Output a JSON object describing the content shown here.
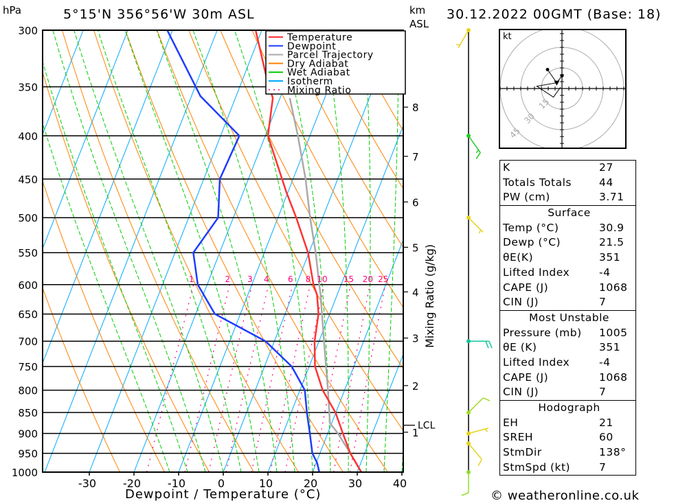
{
  "header": {
    "pressure_unit": "hPa",
    "location": "5°15'N 356°56'W 30m ASL",
    "km_label": "km",
    "asl_label": "ASL",
    "datetime": "30.12.2022 00GMT (Base: 18)"
  },
  "footer": {
    "copyright": "© weatheronline.co.uk"
  },
  "legend": [
    {
      "label": "Temperature",
      "color": "#ff3333",
      "style": "solid"
    },
    {
      "label": "Dewpoint",
      "color": "#1f3cff",
      "style": "solid"
    },
    {
      "label": "Parcel Trajectory",
      "color": "#aaaaaa",
      "style": "solid"
    },
    {
      "label": "Dry Adiabat",
      "color": "#ff8000",
      "style": "solid"
    },
    {
      "label": "Wet Adiabat",
      "color": "#00cc00",
      "style": "solid"
    },
    {
      "label": "Isotherm",
      "color": "#00aaff",
      "style": "solid"
    },
    {
      "label": "Mixing Ratio",
      "color": "#ff0080",
      "style": "dotted"
    }
  ],
  "chart_data": {
    "type": "line",
    "subtype": "skew-T log-p",
    "xlabel": "Dewpoint / Temperature (°C)",
    "ylabel": "hPa",
    "right_label": "Mixing Ratio (g/kg)",
    "x_ticks": [
      "-30",
      "-20",
      "-10",
      "0",
      "10",
      "20",
      "30",
      "40"
    ],
    "x_tick_values": [
      -30,
      -20,
      -10,
      0,
      10,
      20,
      30,
      40
    ],
    "pressure_levels": [
      "300",
      "350",
      "400",
      "450",
      "500",
      "550",
      "600",
      "650",
      "700",
      "750",
      "800",
      "850",
      "900",
      "950",
      "1000"
    ],
    "ylim_hpa": [
      1000,
      300
    ],
    "height_km": [
      {
        "label": "8",
        "p": 370
      },
      {
        "label": "7",
        "p": 423
      },
      {
        "label": "6",
        "p": 479
      },
      {
        "label": "5",
        "p": 542
      },
      {
        "label": "4",
        "p": 612
      },
      {
        "label": "3",
        "p": 694
      },
      {
        "label": "2",
        "p": 790
      },
      {
        "label": "1",
        "p": 897
      }
    ],
    "lcl": {
      "label": "LCL",
      "p": 880
    },
    "mixing_ratios": [
      "1",
      "2",
      "3",
      "4",
      "6",
      "8",
      "10",
      "15",
      "20",
      "25"
    ],
    "series": [
      {
        "name": "Temperature",
        "color": "#ff3333",
        "points": [
          [
            1000,
            30.9
          ],
          [
            975,
            28.9
          ],
          [
            950,
            26.8
          ],
          [
            900,
            23.4
          ],
          [
            850,
            19.9
          ],
          [
            800,
            15.1
          ],
          [
            750,
            11.3
          ],
          [
            700,
            9.0
          ],
          [
            650,
            7.5
          ],
          [
            617,
            5.5
          ],
          [
            600,
            3.8
          ],
          [
            550,
            -0.2
          ],
          [
            500,
            -5.9
          ],
          [
            466,
            -10.4
          ],
          [
            400,
            -19.4
          ],
          [
            361,
            -21.6
          ],
          [
            340,
            -25
          ],
          [
            300,
            -31.4
          ]
        ]
      },
      {
        "name": "Dewpoint",
        "color": "#1f3cff",
        "points": [
          [
            1000,
            21.5
          ],
          [
            975,
            20.2
          ],
          [
            950,
            18.3
          ],
          [
            900,
            16.0
          ],
          [
            850,
            13.5
          ],
          [
            800,
            11.1
          ],
          [
            750,
            6.1
          ],
          [
            700,
            -2.0
          ],
          [
            650,
            -15.7
          ],
          [
            600,
            -22.1
          ],
          [
            550,
            -25.9
          ],
          [
            500,
            -23.4
          ],
          [
            450,
            -26.4
          ],
          [
            400,
            -25.8
          ],
          [
            359,
            -38.0
          ],
          [
            300,
            -51.2
          ]
        ]
      },
      {
        "name": "Parcel Trajectory",
        "color": "#aaaaaa",
        "points": [
          [
            1000,
            30.9
          ],
          [
            950,
            26.8
          ],
          [
            900,
            22.3
          ],
          [
            875,
            19.6
          ],
          [
            792,
            15.9
          ],
          [
            700,
            11.1
          ],
          [
            617,
            6.3
          ],
          [
            600,
            5.1
          ],
          [
            550,
            1.5
          ],
          [
            500,
            -2.8
          ],
          [
            450,
            -7.2
          ],
          [
            400,
            -12.7
          ],
          [
            361,
            -17.8
          ]
        ]
      }
    ],
    "background": {
      "isotherms_C": [
        -120,
        -110,
        -100,
        -90,
        -80,
        -70,
        -60,
        -50,
        -40,
        -30,
        -20,
        -10,
        0,
        10,
        20,
        30,
        40
      ],
      "dry_adiabats_K": [
        250,
        260,
        270,
        280,
        290,
        300,
        310,
        320,
        330,
        340,
        350,
        360,
        370,
        380,
        390,
        400,
        410,
        420,
        430,
        440,
        450
      ],
      "wet_adiabats_C_at_1000": [
        -12,
        -8,
        -4,
        0,
        4,
        8,
        12,
        16,
        20,
        24,
        28,
        32,
        36,
        40
      ]
    },
    "winds": [
      {
        "p": 300,
        "dir": 210,
        "spd": 5,
        "color": "#e6d21e"
      },
      {
        "p": 400,
        "dir": 145,
        "spd": 15,
        "color": "#22cc22"
      },
      {
        "p": 500,
        "dir": 135,
        "spd": 5,
        "color": "#e6d21e"
      },
      {
        "p": 700,
        "dir": 90,
        "spd": 20,
        "color": "#15c49a"
      },
      {
        "p": 850,
        "dir": 45,
        "spd": 10,
        "color": "#a0d82a"
      },
      {
        "p": 900,
        "dir": 75,
        "spd": 5,
        "color": "#e6d21e"
      },
      {
        "p": 925,
        "dir": 140,
        "spd": 10,
        "color": "#e6d21e"
      },
      {
        "p": 1000,
        "dir": 180,
        "spd": 10,
        "color": "#8fdc2a"
      }
    ],
    "hodograph": {
      "unit_label": "kt",
      "rings": [
        "15",
        "30",
        "45"
      ],
      "ring_values": [
        15,
        30,
        45
      ],
      "path_uv": [
        [
          -1,
          1
        ],
        [
          -6.2,
          -6.3
        ],
        [
          -18.3,
          1.7
        ],
        [
          -3.8,
          4.2
        ],
        [
          0,
          9.3
        ],
        [
          -3.8,
          4.2
        ],
        [
          -10.5,
          13.8
        ]
      ],
      "storm_motion_uv": [
        -3.8,
        4.2
      ]
    }
  },
  "indices": {
    "general": [
      {
        "label": "K",
        "value": "27"
      },
      {
        "label": "Totals Totals",
        "value": "44"
      },
      {
        "label": "PW (cm)",
        "value": "3.71"
      }
    ],
    "surface": {
      "title": "Surface",
      "rows": [
        {
          "label": "Temp (°C)",
          "value": "30.9"
        },
        {
          "label": "Dewp (°C)",
          "value": "21.5"
        },
        {
          "label": "θE(K)",
          "value": "351"
        },
        {
          "label": "Lifted Index",
          "value": "-4"
        },
        {
          "label": "CAPE (J)",
          "value": "1068"
        },
        {
          "label": "CIN (J)",
          "value": "7"
        }
      ]
    },
    "most_unstable": {
      "title": "Most Unstable",
      "rows": [
        {
          "label": "Pressure (mb)",
          "value": "1005"
        },
        {
          "label": "θE (K)",
          "value": "351"
        },
        {
          "label": "Lifted Index",
          "value": "-4"
        },
        {
          "label": "CAPE (J)",
          "value": "1068"
        },
        {
          "label": "CIN (J)",
          "value": "7"
        }
      ]
    },
    "hodograph": {
      "title": "Hodograph",
      "rows": [
        {
          "label": "EH",
          "value": "21"
        },
        {
          "label": "SREH",
          "value": "60"
        },
        {
          "label": "StmDir",
          "value": "138°"
        },
        {
          "label": "StmSpd (kt)",
          "value": "7"
        }
      ]
    }
  }
}
